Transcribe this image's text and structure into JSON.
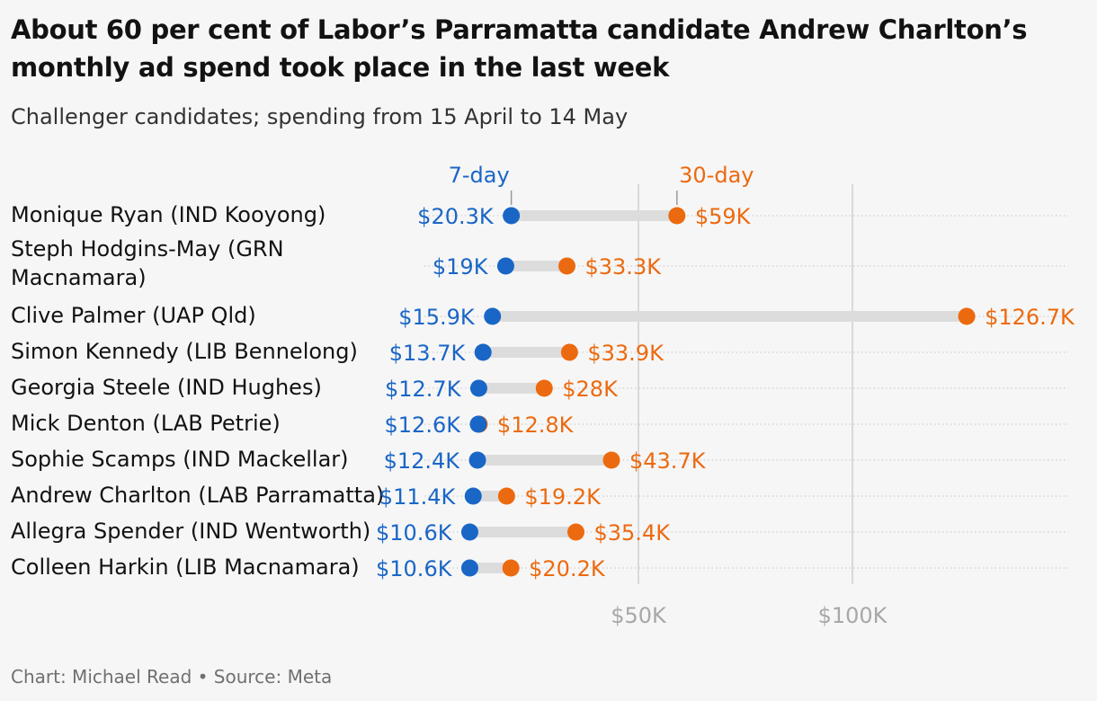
{
  "title": "About 60 per cent of Labor’s Parramatta candidate Andrew Charlton’s monthly ad spend took place in the last week",
  "subtitle": "Challenger candidates; spending from 15 April to 14 May",
  "footer": "Chart: Michael Read • Source: Meta",
  "colors": {
    "seven_day": "#1a66c6",
    "thirty_day": "#ec6a0f",
    "connector": "#dcdcdc",
    "grid": "#cfcfcf",
    "tick": "#a8a8a8"
  },
  "chart_data": {
    "type": "dot",
    "categories": [
      [
        "Monique Ryan (IND Kooyong)"
      ],
      [
        "Steph Hodgins-May (GRN",
        "Macnamara)"
      ],
      [
        "Clive Palmer (UAP Qld)"
      ],
      [
        "Simon Kennedy (LIB Bennelong)"
      ],
      [
        "Georgia Steele (IND Hughes)"
      ],
      [
        "Mick Denton (LAB Petrie)"
      ],
      [
        "Sophie Scamps (IND Mackellar)"
      ],
      [
        "Andrew Charlton (LAB Parramatta)"
      ],
      [
        "Allegra Spender (IND Wentworth)"
      ],
      [
        "Colleen Harkin (LIB Macnamara)"
      ]
    ],
    "series": [
      {
        "name": "7-day",
        "values": [
          20.3,
          19,
          15.9,
          13.7,
          12.7,
          12.6,
          12.4,
          11.4,
          10.6,
          10.6
        ],
        "labels": [
          "$20.3K",
          "$19K",
          "$15.9K",
          "$13.7K",
          "$12.7K",
          "$12.6K",
          "$12.4K",
          "$11.4K",
          "$10.6K",
          "$10.6K"
        ]
      },
      {
        "name": "30-day",
        "values": [
          59,
          33.3,
          126.7,
          33.9,
          28,
          12.8,
          43.7,
          19.2,
          35.4,
          20.2
        ],
        "labels": [
          "$59K",
          "$33.3K",
          "$126.7K",
          "$33.9K",
          "$28K",
          "$12.8K",
          "$43.7K",
          "$19.2K",
          "$35.4K",
          "$20.2K"
        ]
      }
    ],
    "x_ticks": [
      50,
      100
    ],
    "x_tick_labels": [
      "$50K",
      "$100K"
    ],
    "xlim": [
      0,
      135
    ],
    "grid": true,
    "legend": "above first row"
  }
}
